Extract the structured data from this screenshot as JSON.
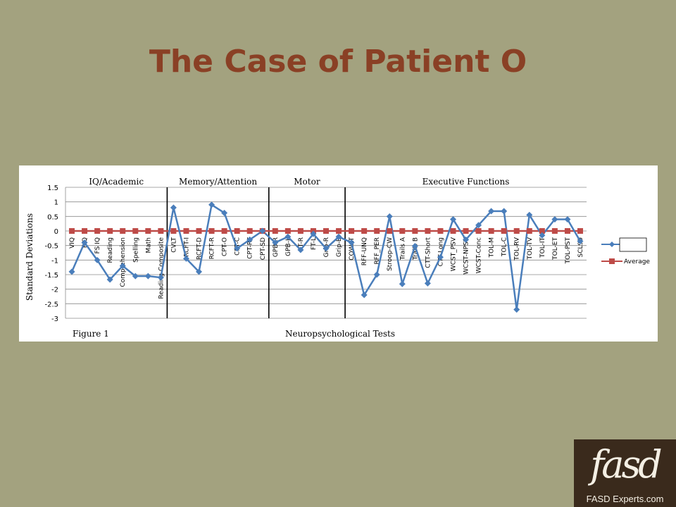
{
  "slide": {
    "title": "The Case of Patient O"
  },
  "logo": {
    "mark": "fasd",
    "site": "FASD Experts.com"
  },
  "chart_data": {
    "type": "line",
    "ylabel": "Standard Deviations",
    "xlabel": "Neuropsychological Tests",
    "caption": "Figure 1",
    "ylim": [
      -3,
      1.5
    ],
    "yticks": [
      "1.5",
      "1",
      "0.5",
      "0",
      "-0.5",
      "-1",
      "-1.5",
      "-2",
      "-2.5",
      "-3"
    ],
    "grid": true,
    "legend_position": "right",
    "sections": [
      {
        "label": "IQ/Academic"
      },
      {
        "label": "Memory/Attention"
      },
      {
        "label": "Motor"
      },
      {
        "label": "Executive Functions"
      }
    ],
    "categories": [
      "VIQ",
      "PIQ",
      "FS IQ",
      "Reading",
      "Comprehension",
      "Spelling",
      "Math",
      "Reading Composite",
      "CVLT",
      "RCFT-I",
      "RCFT-D",
      "RCFT-R",
      "CPT-O",
      "CPT-C",
      "CPT-RT",
      "CPT-SD",
      "GPB-R",
      "GPB-L",
      "FT-R",
      "FT-L",
      "Grip-R",
      "Grip-B",
      "COWAT",
      "RFF-UNQ",
      "RFF_PER",
      "Stroop-CW",
      "Trails A",
      "Trails B",
      "CTT-Short",
      "CTT-Long",
      "WCST_PSV",
      "WCST-NPSV",
      "WCST-Conc",
      "TOL-M",
      "TOL-C",
      "TOL-RV",
      "TOL-TV",
      "TOL-IT",
      "TOL-ET",
      "TOL-PST",
      "SCL90"
    ],
    "series": [
      {
        "name": "",
        "color": "#4a7ebb",
        "marker": "diamond",
        "values": [
          -1.4,
          -0.4,
          -1.0,
          -1.67,
          -1.2,
          -1.55,
          -1.55,
          -1.6,
          0.8,
          -0.95,
          -1.4,
          0.9,
          0.62,
          -0.6,
          -0.3,
          0.0,
          -0.4,
          -0.2,
          -0.65,
          -0.1,
          -0.6,
          -0.2,
          -0.4,
          -2.2,
          -1.5,
          0.5,
          -1.82,
          -0.52,
          -1.8,
          -0.9,
          0.4,
          -0.3,
          0.2,
          0.68,
          0.68,
          -2.7,
          0.55,
          -0.15,
          0.4,
          0.4,
          -0.35
        ]
      },
      {
        "name": "Average",
        "color": "#be4b48",
        "marker": "square",
        "values": [
          0,
          0,
          0,
          0,
          0,
          0,
          0,
          0,
          0,
          0,
          0,
          0,
          0,
          0,
          0,
          0,
          0,
          0,
          0,
          0,
          0,
          0,
          0,
          0,
          0,
          0,
          0,
          0,
          0,
          0,
          0,
          0,
          0,
          0,
          0,
          0,
          0,
          0,
          0,
          0,
          0
        ]
      }
    ]
  }
}
